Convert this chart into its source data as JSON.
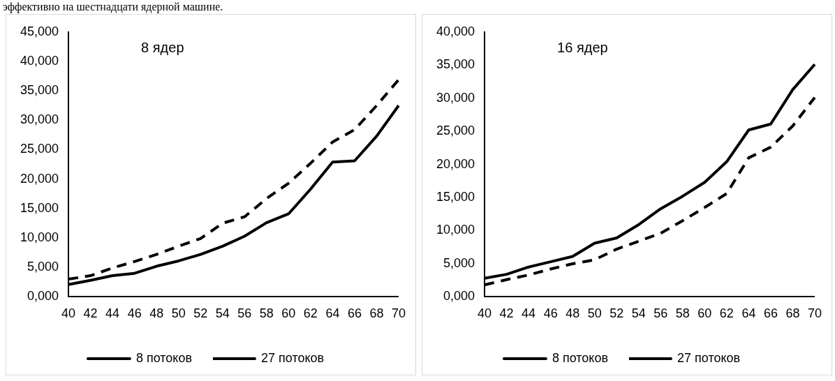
{
  "chart_data": [
    {
      "type": "line",
      "title": "8 ядер",
      "annotations": [
        "эффективно на шестнадцати ядерной машине."
      ],
      "categories": [
        "40",
        "42",
        "44",
        "46",
        "48",
        "50",
        "52",
        "54",
        "56",
        "58",
        "60",
        "62",
        "64",
        "66",
        "68",
        "70"
      ],
      "series": [
        {
          "name": "8 потоков",
          "color": "#000000",
          "line_style": "solid",
          "values": [
            2.1,
            2.8,
            3.6,
            4.0,
            5.2,
            6.1,
            7.2,
            8.6,
            10.3,
            12.6,
            14.1,
            18.3,
            22.9,
            23.1,
            27.3,
            32.5
          ]
        },
        {
          "name": "27 потоков",
          "color": "#000000",
          "line_style": "dashed",
          "values": [
            3.0,
            3.6,
            4.9,
            6.0,
            7.2,
            8.6,
            9.9,
            12.5,
            13.6,
            16.7,
            19.3,
            22.7,
            26.3,
            28.4,
            32.5,
            36.9
          ]
        }
      ],
      "ylim": [
        0,
        45
      ],
      "yticks": [
        {
          "value": 0,
          "label": "0,000"
        },
        {
          "value": 5,
          "label": "5,000"
        },
        {
          "value": 10,
          "label": "10,000"
        },
        {
          "value": 15,
          "label": "15,000"
        },
        {
          "value": 20,
          "label": "20,000"
        },
        {
          "value": 25,
          "label": "25,000"
        },
        {
          "value": 30,
          "label": "30,000"
        },
        {
          "value": 35,
          "label": "35,000"
        },
        {
          "value": 40,
          "label": "40,000"
        },
        {
          "value": 45,
          "label": "45,000"
        }
      ],
      "grid": false,
      "legend": "bottom",
      "marker": "none"
    },
    {
      "type": "line",
      "title": "16 ядер",
      "categories": [
        "40",
        "42",
        "44",
        "46",
        "48",
        "50",
        "52",
        "54",
        "56",
        "58",
        "60",
        "62",
        "64",
        "66",
        "68",
        "70"
      ],
      "series": [
        {
          "name": "8 потоков",
          "color": "#000000",
          "line_style": "solid",
          "values": [
            2.8,
            3.4,
            4.5,
            5.3,
            6.1,
            8.1,
            8.9,
            10.9,
            13.3,
            15.2,
            17.3,
            20.4,
            25.2,
            26.1,
            31.3,
            35.1
          ]
        },
        {
          "name": "27 потоков",
          "color": "#000000",
          "line_style": "dashed",
          "values": [
            1.8,
            2.6,
            3.3,
            4.2,
            5.0,
            5.6,
            7.2,
            8.4,
            9.6,
            11.5,
            13.5,
            15.6,
            21.0,
            22.6,
            25.8,
            30.1
          ]
        }
      ],
      "ylim": [
        0,
        40
      ],
      "yticks": [
        {
          "value": 0,
          "label": "0,000"
        },
        {
          "value": 5,
          "label": "5,000"
        },
        {
          "value": 10,
          "label": "10,000"
        },
        {
          "value": 15,
          "label": "15,000"
        },
        {
          "value": 20,
          "label": "20,000"
        },
        {
          "value": 25,
          "label": "25,000"
        },
        {
          "value": 30,
          "label": "30,000"
        },
        {
          "value": 35,
          "label": "35,000"
        },
        {
          "value": 40,
          "label": "40,000"
        }
      ],
      "grid": false,
      "legend": "bottom",
      "marker": "none"
    }
  ]
}
